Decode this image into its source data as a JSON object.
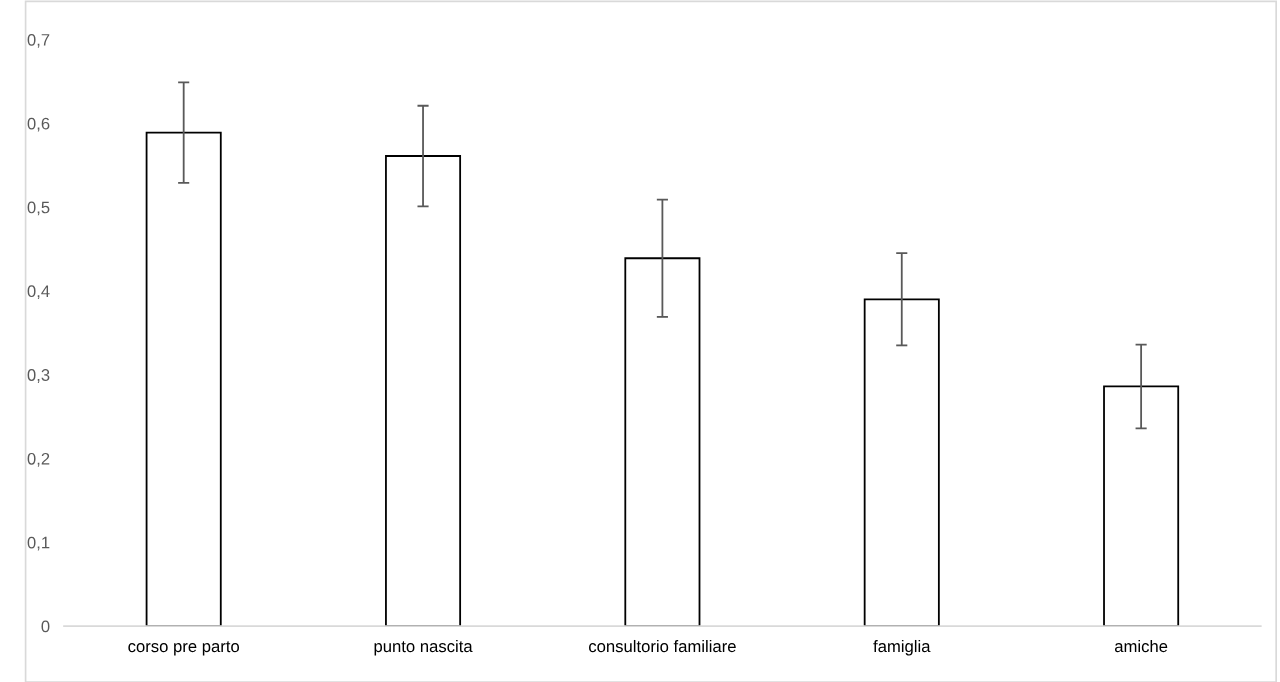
{
  "chart_data": {
    "type": "bar",
    "categories": [
      "corso pre parto",
      "punto nascita",
      "consultorio familiare",
      "famiglia",
      "amiche"
    ],
    "values": [
      0.589,
      0.561,
      0.439,
      0.39,
      0.286
    ],
    "errors": [
      0.06,
      0.06,
      0.07,
      0.055,
      0.05
    ],
    "color": "#ffffff",
    "ylim": [
      0,
      0.7
    ],
    "yticks": [
      {
        "value": 0,
        "label": "0"
      },
      {
        "value": 0.1,
        "label": "0,1"
      },
      {
        "value": 0.2,
        "label": "0,2"
      },
      {
        "value": 0.3,
        "label": "0,3"
      },
      {
        "value": 0.4,
        "label": "0,4"
      },
      {
        "value": 0.5,
        "label": "0,5"
      },
      {
        "value": 0.6,
        "label": "0,6"
      },
      {
        "value": 0.7,
        "label": "0,7"
      }
    ],
    "grid": false
  }
}
